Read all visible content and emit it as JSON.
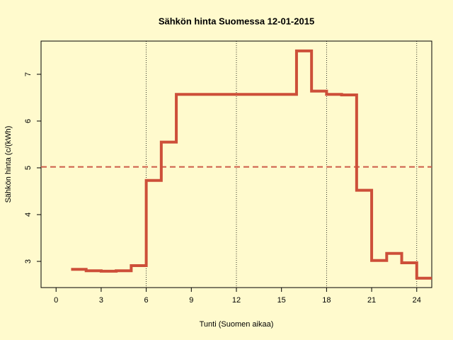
{
  "chart_data": {
    "type": "step",
    "title": "Sähkön hinta Suomessa 12-01-2015",
    "x_label": "Tunti (Suomen aikaa)",
    "y_label": "Sähkön hinta (c/(kWh)",
    "x": [
      1,
      2,
      3,
      4,
      5,
      6,
      7,
      8,
      9,
      10,
      11,
      12,
      13,
      14,
      15,
      16,
      17,
      18,
      19,
      20,
      21,
      22,
      23,
      24,
      25
    ],
    "series": [
      {
        "color": "#cd4f39",
        "values": [
          2.83,
          2.8,
          2.79,
          2.8,
          2.91,
          4.73,
          5.55,
          6.57,
          6.57,
          6.57,
          6.57,
          6.57,
          6.57,
          6.57,
          6.57,
          7.5,
          6.64,
          6.57,
          6.56,
          4.52,
          3.02,
          3.17,
          2.97,
          2.64,
          2.64
        ]
      }
    ],
    "xlim": [
      -1,
      25
    ],
    "ylim": [
      2.44,
      7.71
    ],
    "xticks": [
      0,
      3,
      6,
      9,
      12,
      15,
      18,
      21,
      24
    ],
    "yticks": [
      3,
      4,
      5,
      6,
      7
    ],
    "vlines": [
      6,
      12,
      18,
      24
    ],
    "hline": 5.02,
    "hline_color": "#cd5c48"
  }
}
